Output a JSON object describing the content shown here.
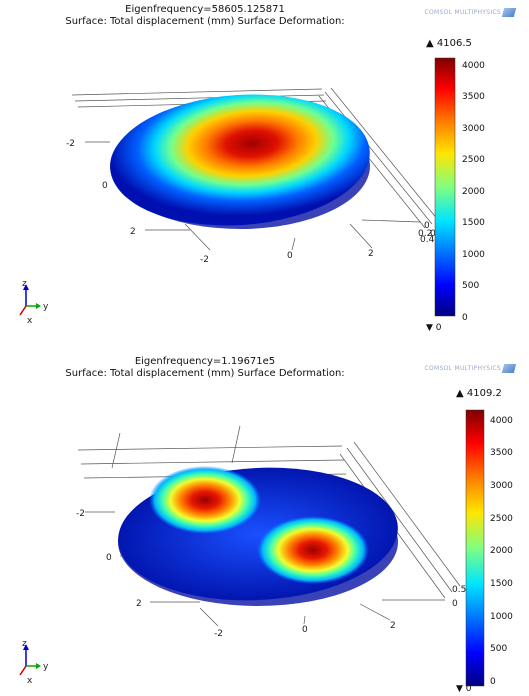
{
  "panels": [
    {
      "title_line1": "Eigenfrequency=58605.125871",
      "title_line2": "Surface: Total displacement (mm)   Surface Deformation:",
      "logo_text": "COMSOL MULTIPHYSICS",
      "colorbar_max": "▲ 4106.5",
      "colorbar_min": "▼ 0",
      "colorbar_ticks": [
        "4000",
        "3500",
        "3000",
        "2500",
        "2000",
        "1500",
        "1000",
        "500",
        "0"
      ],
      "axis_labels": [
        "-2",
        "0",
        "2",
        "-2",
        "0",
        "2",
        "0",
        "0.2",
        "0",
        "0.4"
      ],
      "triad": {
        "z": "z",
        "y": "y",
        "x": "x"
      }
    },
    {
      "title_line1": "Eigenfrequency=1.19671e5",
      "title_line2": "Surface: Total displacement (mm)   Surface Deformation:",
      "logo_text": "COMSOL MULTIPHYSICS",
      "colorbar_max": "▲ 4109.2",
      "colorbar_min": "▼ 0",
      "colorbar_ticks": [
        "4000",
        "3500",
        "3000",
        "2500",
        "2000",
        "1500",
        "1000",
        "500",
        "0"
      ],
      "axis_labels": [
        "-2",
        "0",
        "2",
        "-2",
        "0",
        "2",
        "0.5",
        "0"
      ],
      "triad": {
        "z": "z",
        "y": "y",
        "x": "x"
      }
    }
  ],
  "colormap": [
    "#00007f",
    "#0000ff",
    "#0080ff",
    "#00e5ff",
    "#80ff80",
    "#ffe500",
    "#ff8000",
    "#ff0000",
    "#7f0000"
  ]
}
